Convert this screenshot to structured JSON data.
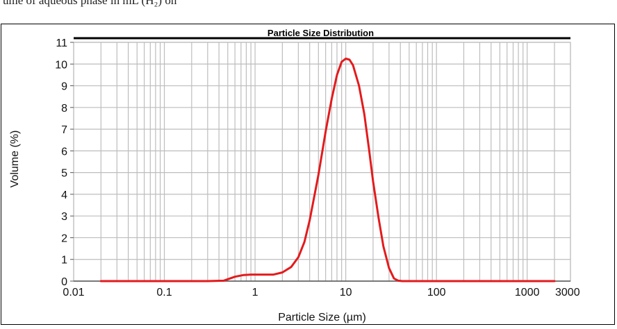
{
  "page": {
    "caption_fragment": "ume of aqueous phase in mL (H₂) on"
  },
  "chart_data": {
    "type": "line",
    "title": "Particle Size Distribution",
    "xlabel": "Particle Size (µm)",
    "ylabel": "Volume (%)",
    "xscale": "log",
    "xlim": [
      0.01,
      3000
    ],
    "ylim": [
      0,
      11
    ],
    "x_ticks": [
      0.01,
      0.1,
      1,
      10,
      100,
      1000,
      3000
    ],
    "x_tick_labels": [
      "0.01",
      "0.1",
      "1",
      "10",
      "100",
      "1000",
      "3000"
    ],
    "y_ticks": [
      0,
      1,
      2,
      3,
      4,
      5,
      6,
      7,
      8,
      9,
      10,
      11
    ],
    "grid": true,
    "line_color": "#e41a1c",
    "series": [
      {
        "name": "",
        "x": [
          0.02,
          0.1,
          0.3,
          0.45,
          0.6,
          0.75,
          0.9,
          1.2,
          1.6,
          2.0,
          2.5,
          3.0,
          3.5,
          4.0,
          5.0,
          6.0,
          7.0,
          8.0,
          9.0,
          10.0,
          11.0,
          12.0,
          14.0,
          16.0,
          18.0,
          20.0,
          23.0,
          26.0,
          30.0,
          34.0,
          38.0,
          42.0,
          50.0,
          100,
          500,
          2000
        ],
        "y": [
          0,
          0,
          0,
          0.02,
          0.2,
          0.28,
          0.3,
          0.3,
          0.3,
          0.4,
          0.65,
          1.1,
          1.8,
          2.8,
          4.9,
          6.9,
          8.4,
          9.5,
          10.1,
          10.25,
          10.2,
          9.95,
          9.0,
          7.7,
          6.1,
          4.6,
          2.9,
          1.6,
          0.6,
          0.12,
          0.02,
          0,
          0,
          0,
          0,
          0
        ]
      }
    ]
  }
}
